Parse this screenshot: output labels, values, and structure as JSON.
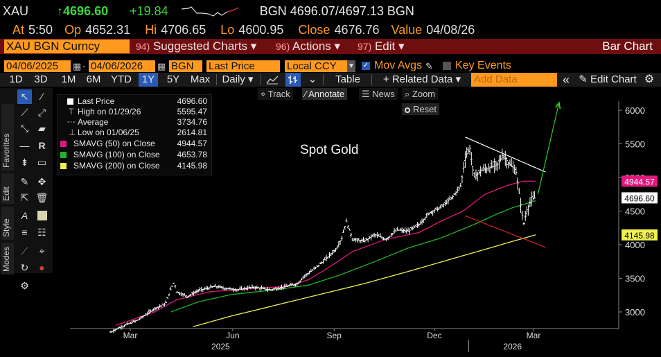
{
  "header": {
    "ticker": "XAU",
    "price": "↑4696.60",
    "change": "+19.84",
    "quote": "BGN 4696.07/4697.13 BGN",
    "at_label": "At",
    "at_value": "5:50",
    "op_label": "Op",
    "op_value": "4652.31",
    "hi_label": "Hi",
    "hi_value": "4706.65",
    "lo_label": "Lo",
    "lo_value": "4600.95",
    "close_label": "Close",
    "close_value": "4676.76",
    "value_label": "Value",
    "value_value": "04/08/26"
  },
  "menubar": {
    "security": "XAU BGN Curncy",
    "m1_num": "94)",
    "m1_label": "Suggested Charts ▾",
    "m2_num": "96)",
    "m2_label": "Actions ▾",
    "m3_num": "97)",
    "m3_label": "Edit ▾",
    "title": "Bar Chart"
  },
  "controls": {
    "start_date": "04/06/2025",
    "end_date": "04/06/2026",
    "source": "BGN",
    "field": "Last Price",
    "currency": "Local CCY",
    "mov_avgs": "Mov Avgs",
    "key_events": "Key Events"
  },
  "periods": {
    "p1": "1D",
    "p2": "3D",
    "p3": "1M",
    "p4": "6M",
    "p5": "YTD",
    "p6": "1Y",
    "p7": "5Y",
    "p8": "Max",
    "frequency": "Daily ▾",
    "table": "Table",
    "related": "+ Related Data ▾",
    "add_placeholder": "Add Data",
    "collapse": "«",
    "edit_chart": "✎ Edit Chart"
  },
  "chart_toolbar": {
    "track": "Track",
    "annotate": "Annotate",
    "news": "News",
    "zoom": "Zoom",
    "reset": "Reset"
  },
  "side_tabs": {
    "favorites": "Favorites",
    "edit": "Edit",
    "style": "Style",
    "modes": "Modes"
  },
  "legend": {
    "r1_label": "Last Price",
    "r1_value": "4696.60",
    "r2_label": "High on 01/29/26",
    "r2_value": "5595.47",
    "r3_label": "Average",
    "r3_value": "3734.76",
    "r4_label": "Low on 01/06/25",
    "r4_value": "2614.81",
    "r5_label": "SMAVG (50)  on Close",
    "r5_value": "4944.57",
    "r6_label": "SMAVG (100)  on Close",
    "r6_value": "4653.78",
    "r7_label": "SMAVG (200)  on Close",
    "r7_value": "4145.98"
  },
  "annotation_text": "Spot Gold",
  "colors": {
    "orange": "#ff9a1f",
    "menu_bg": "#6e0e10",
    "sma50": "#e0197f",
    "sma100": "#21b523",
    "sma200": "#f0f050",
    "price": "#ffffff",
    "trend_upper": "#ffffff",
    "trend_lower": "#e02020",
    "arrow": "#2ad02a"
  },
  "chart_data": {
    "type": "bar",
    "title": "Spot Gold",
    "y_axis": {
      "ylim": [
        2780,
        6200
      ],
      "ticks": [
        "3000",
        "3500",
        "4000",
        "4500",
        "5000",
        "5500",
        "6000"
      ],
      "tick_values": [
        3000,
        3500,
        4000,
        4500,
        5000,
        5500,
        6000
      ]
    },
    "x_axis": {
      "range_days": [
        0,
        407
      ],
      "month_ticks": [
        {
          "label": "Mar",
          "day": 18
        },
        {
          "label": "Jun",
          "day": 111
        },
        {
          "label": "Sep",
          "day": 203
        },
        {
          "label": "Dec",
          "day": 294
        },
        {
          "label": "Mar",
          "day": 384
        }
      ],
      "year_labels": [
        {
          "label": "2025",
          "day": 100
        },
        {
          "label": "2026",
          "day": 365
        }
      ],
      "year_divider_day": 325
    },
    "price_anchors": [
      [
        -10,
        2630
      ],
      [
        0,
        2700
      ],
      [
        10,
        2780
      ],
      [
        25,
        2880
      ],
      [
        40,
        3050
      ],
      [
        50,
        3120
      ],
      [
        55,
        3350
      ],
      [
        58,
        3450
      ],
      [
        60,
        3300
      ],
      [
        70,
        3230
      ],
      [
        80,
        3320
      ],
      [
        95,
        3380
      ],
      [
        105,
        3350
      ],
      [
        115,
        3330
      ],
      [
        130,
        3370
      ],
      [
        145,
        3330
      ],
      [
        160,
        3380
      ],
      [
        170,
        3420
      ],
      [
        175,
        3520
      ],
      [
        185,
        3640
      ],
      [
        195,
        3780
      ],
      [
        205,
        3940
      ],
      [
        210,
        4100
      ],
      [
        214,
        4350
      ],
      [
        220,
        4080
      ],
      [
        230,
        4050
      ],
      [
        240,
        4150
      ],
      [
        250,
        4080
      ],
      [
        260,
        4220
      ],
      [
        270,
        4200
      ],
      [
        280,
        4300
      ],
      [
        290,
        4480
      ],
      [
        300,
        4560
      ],
      [
        310,
        4700
      ],
      [
        318,
        4880
      ],
      [
        322,
        5300
      ],
      [
        326,
        5450
      ],
      [
        330,
        5000
      ],
      [
        336,
        5100
      ],
      [
        345,
        5150
      ],
      [
        352,
        5200
      ],
      [
        356,
        5340
      ],
      [
        362,
        5200
      ],
      [
        368,
        5100
      ],
      [
        372,
        4650
      ],
      [
        375,
        4300
      ],
      [
        377,
        4450
      ],
      [
        380,
        4600
      ],
      [
        383,
        4680
      ],
      [
        386,
        4697
      ]
    ],
    "series": [
      {
        "name": "SMAVG (50) on Close",
        "color": "#e0197f",
        "points": [
          [
            5,
            2800
          ],
          [
            40,
            3000
          ],
          [
            60,
            3180
          ],
          [
            90,
            3300
          ],
          [
            130,
            3350
          ],
          [
            160,
            3380
          ],
          [
            180,
            3480
          ],
          [
            200,
            3680
          ],
          [
            220,
            3900
          ],
          [
            250,
            4080
          ],
          [
            280,
            4180
          ],
          [
            300,
            4350
          ],
          [
            320,
            4500
          ],
          [
            340,
            4750
          ],
          [
            360,
            4880
          ],
          [
            375,
            4945
          ],
          [
            386,
            4944.57
          ]
        ]
      },
      {
        "name": "SMAVG (100) on Close",
        "color": "#21b523",
        "points": [
          [
            55,
            3000
          ],
          [
            80,
            3150
          ],
          [
            110,
            3260
          ],
          [
            150,
            3330
          ],
          [
            180,
            3400
          ],
          [
            210,
            3560
          ],
          [
            240,
            3750
          ],
          [
            270,
            3950
          ],
          [
            300,
            4100
          ],
          [
            330,
            4300
          ],
          [
            350,
            4450
          ],
          [
            365,
            4550
          ],
          [
            386,
            4653.78
          ]
        ]
      },
      {
        "name": "SMAVG (200) on Close",
        "color": "#f0f050",
        "points": [
          [
            75,
            2780
          ],
          [
            110,
            2940
          ],
          [
            150,
            3100
          ],
          [
            190,
            3260
          ],
          [
            230,
            3420
          ],
          [
            270,
            3600
          ],
          [
            310,
            3790
          ],
          [
            340,
            3930
          ],
          [
            365,
            4050
          ],
          [
            386,
            4145.98
          ]
        ]
      }
    ],
    "trendlines": [
      {
        "name": "upper",
        "color": "#ffffff",
        "from": [
          322,
          5600
        ],
        "to": [
          395,
          5080
        ]
      },
      {
        "name": "lower",
        "color": "#e02020",
        "from": [
          322,
          4430
        ],
        "to": [
          395,
          3960
        ]
      },
      {
        "name": "arrow",
        "color": "#2ad02a",
        "from": [
          388,
          4750
        ],
        "to": [
          407,
          6100
        ]
      }
    ],
    "price_tags": [
      {
        "label": "4944.57",
        "value": 4944.57,
        "bg": "#e0197f",
        "fg": "#ffffff"
      },
      {
        "label": "4696.60",
        "value": 4696.6,
        "bg": "#ffffff",
        "fg": "#000000"
      },
      {
        "label": "4145.98",
        "value": 4145.98,
        "bg": "#f0f050",
        "fg": "#000000"
      }
    ]
  }
}
